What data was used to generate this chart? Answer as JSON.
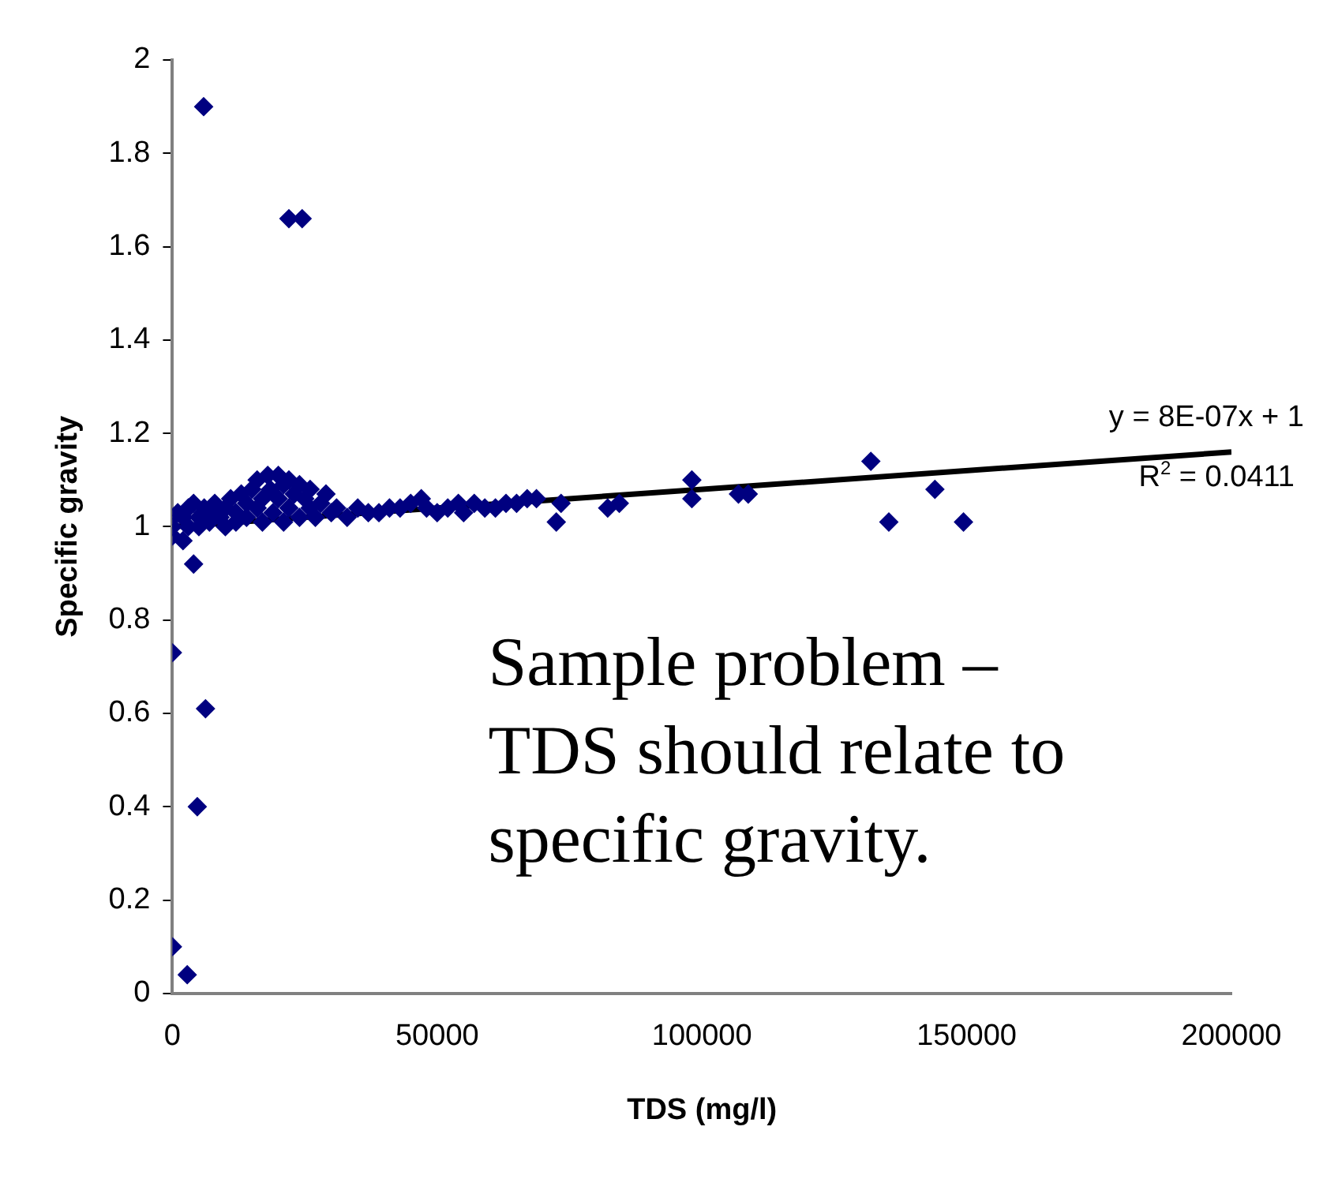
{
  "chart_data": {
    "type": "scatter",
    "xlabel": "TDS (mg/l)",
    "ylabel": "Specific gravity",
    "xlim": [
      0,
      200000
    ],
    "xticks": [
      0,
      50000,
      100000,
      150000,
      200000
    ],
    "ylim": [
      0,
      2
    ],
    "yticks": [
      0,
      0.2,
      0.4,
      0.6,
      0.8,
      1,
      1.2,
      1.4,
      1.6,
      1.8,
      2
    ],
    "grid": false,
    "legend": false,
    "marker": "diamond",
    "series": [
      {
        "color": "#000080",
        "x": [
          5900,
          22000,
          24500,
          0,
          6250,
          4700,
          0,
          2800,
          4000,
          0,
          0,
          0,
          1000,
          2000,
          2000,
          3000,
          3000,
          4000,
          5000,
          5000,
          6000,
          7000,
          7500,
          8000,
          9000,
          10000,
          10000,
          11000,
          12000,
          12000,
          13000,
          14000,
          14000,
          15000,
          16000,
          16000,
          17000,
          17000,
          18000,
          18500,
          19000,
          20000,
          20000,
          21000,
          21000,
          22000,
          22000,
          23000,
          24000,
          24000,
          25000,
          26000,
          26000,
          27000,
          28000,
          29000,
          30000,
          31000,
          33000,
          35000,
          37000,
          39000,
          41000,
          43000,
          45000,
          47000,
          48000,
          50000,
          52000,
          54000,
          55000,
          57000,
          59000,
          61000,
          63000,
          65000,
          67000,
          68750,
          72500,
          73400,
          82200,
          84400,
          98100,
          98100,
          106900,
          108750,
          131900,
          135300,
          144000,
          149400
        ],
        "values": [
          1.9,
          1.66,
          1.66,
          0.73,
          0.61,
          0.4,
          0.1,
          0.04,
          0.92,
          1.0,
          1.02,
          0.98,
          1.03,
          1.02,
          0.97,
          1.04,
          1.0,
          1.05,
          1.02,
          1.0,
          1.04,
          1.01,
          1.03,
          1.05,
          1.02,
          1.04,
          1.0,
          1.06,
          1.03,
          1.01,
          1.07,
          1.05,
          1.02,
          1.08,
          1.1,
          1.04,
          1.06,
          1.01,
          1.11,
          1.08,
          1.03,
          1.11,
          1.06,
          1.09,
          1.01,
          1.1,
          1.04,
          1.07,
          1.09,
          1.02,
          1.06,
          1.04,
          1.08,
          1.02,
          1.05,
          1.07,
          1.03,
          1.04,
          1.02,
          1.04,
          1.03,
          1.03,
          1.04,
          1.04,
          1.05,
          1.06,
          1.04,
          1.03,
          1.04,
          1.05,
          1.03,
          1.05,
          1.04,
          1.04,
          1.05,
          1.05,
          1.06,
          1.06,
          1.01,
          1.05,
          1.04,
          1.05,
          1.1,
          1.06,
          1.07,
          1.07,
          1.14,
          1.01,
          1.08,
          1.01
        ]
      },
      {
        "type": "line",
        "color": "#000000",
        "marker": "none",
        "x": [
          0,
          200000
        ],
        "values": [
          1,
          1.16
        ]
      }
    ],
    "annotations": [
      "y = 8E-07x + 1",
      "R$^{2}$ = 0.0411",
      "Sample problem –\nTDS should relate to\nspecific gravity."
    ]
  }
}
